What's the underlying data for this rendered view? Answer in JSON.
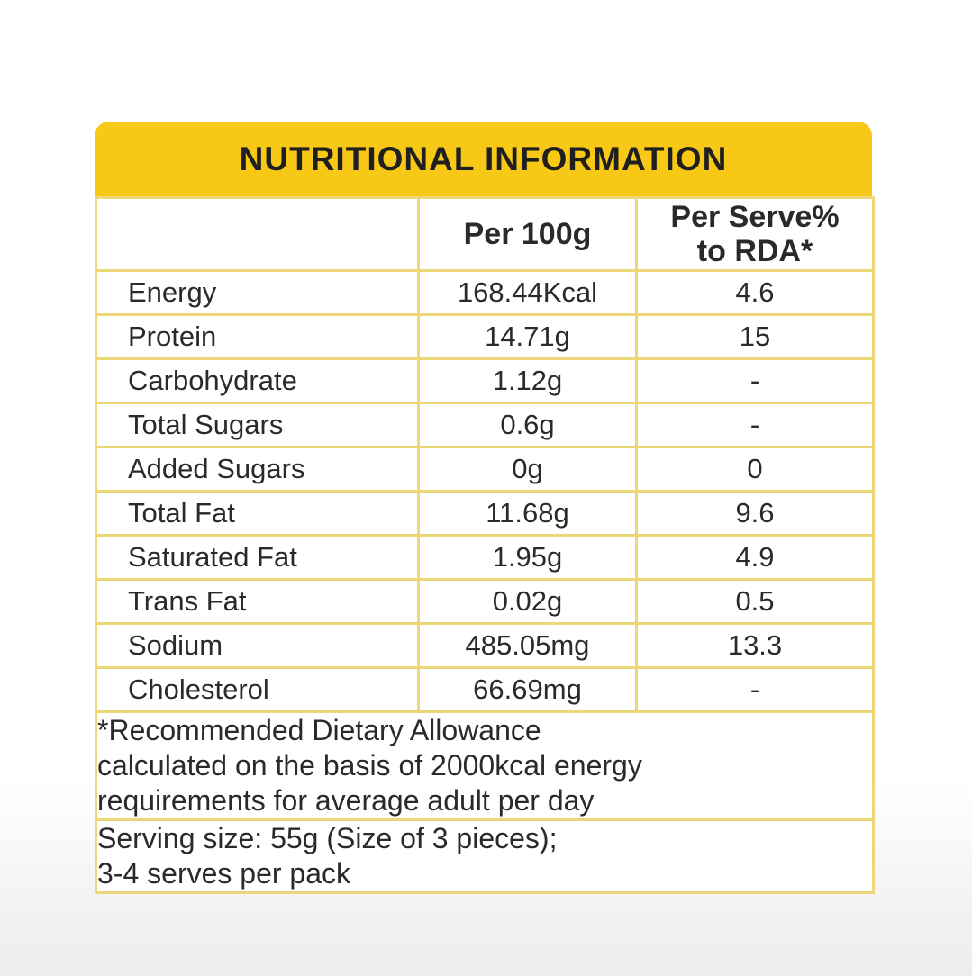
{
  "title": "NUTRITIONAL INFORMATION",
  "table": {
    "col_headers": {
      "col2": "Per 100g",
      "col3_line1": "Per Serve%",
      "col3_line2": "to RDA*"
    },
    "rows": [
      {
        "label": "Energy",
        "per_100g": "168.44Kcal",
        "per_serve_rda": "4.6"
      },
      {
        "label": "Protein",
        "per_100g": "14.71g",
        "per_serve_rda": "15"
      },
      {
        "label": "Carbohydrate",
        "per_100g": "1.12g",
        "per_serve_rda": "-"
      },
      {
        "label": "Total Sugars",
        "per_100g": "0.6g",
        "per_serve_rda": "-"
      },
      {
        "label": "Added Sugars",
        "per_100g": "0g",
        "per_serve_rda": "0"
      },
      {
        "label": "Total Fat",
        "per_100g": "11.68g",
        "per_serve_rda": "9.6"
      },
      {
        "label": "Saturated Fat",
        "per_100g": "1.95g",
        "per_serve_rda": "4.9"
      },
      {
        "label": "Trans Fat",
        "per_100g": "0.02g",
        "per_serve_rda": "0.5"
      },
      {
        "label": "Sodium",
        "per_100g": "485.05mg",
        "per_serve_rda": "13.3"
      },
      {
        "label": "Cholesterol",
        "per_100g": "66.69mg",
        "per_serve_rda": "-"
      }
    ],
    "footnote_lines": [
      "*Recommended Dietary Allowance",
      "calculated on the basis of 2000kcal energy",
      "requirements for average adult per day"
    ],
    "serving_lines": [
      "Serving size: 55g (Size of 3 pieces);",
      "3-4 serves per pack"
    ]
  },
  "colors": {
    "accent_yellow": "#f8c816",
    "grid_line": "#edd779",
    "text": "#2a2a2a",
    "page_bottom": "#ededef"
  }
}
